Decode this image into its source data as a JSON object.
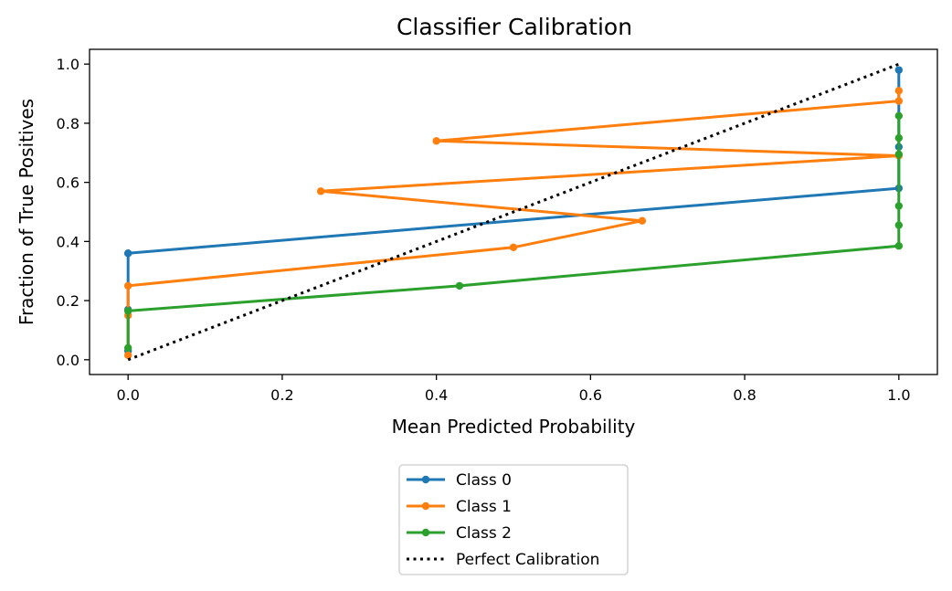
{
  "chart_data": {
    "type": "line",
    "title": "Classifier Calibration",
    "xlabel": "Mean Predicted Probability",
    "ylabel": "Fraction of True Positives",
    "xlim": [
      -0.05,
      1.05
    ],
    "ylim": [
      -0.05,
      1.05
    ],
    "xticks": [
      0.0,
      0.2,
      0.4,
      0.6,
      0.8,
      1.0
    ],
    "yticks": [
      0.0,
      0.2,
      0.4,
      0.6,
      0.8,
      1.0
    ],
    "xtick_labels": [
      "0.0",
      "0.2",
      "0.4",
      "0.6",
      "0.8",
      "1.0"
    ],
    "ytick_labels": [
      "0.0",
      "0.2",
      "0.4",
      "0.6",
      "0.8",
      "1.0"
    ],
    "grid": false,
    "legend_position": "below plot, centered",
    "series": [
      {
        "name": "Class 0",
        "color": "#1f77b4",
        "style": "solid-with-dots",
        "x": [
          0.0,
          0.0,
          0.0,
          0.0,
          1.0,
          1.0,
          1.0
        ],
        "y": [
          0.03,
          0.17,
          0.36,
          0.36,
          0.58,
          0.72,
          0.98
        ]
      },
      {
        "name": "Class 1",
        "color": "#ff7f0e",
        "style": "solid-with-dots",
        "x": [
          0.0,
          0.0,
          0.0,
          0.5,
          0.667,
          0.25,
          1.0,
          0.4,
          1.0,
          1.0
        ],
        "y": [
          0.015,
          0.15,
          0.25,
          0.38,
          0.47,
          0.57,
          0.69,
          0.74,
          0.875,
          0.91
        ]
      },
      {
        "name": "Class 2",
        "color": "#2ca02c",
        "style": "solid-with-dots",
        "x": [
          0.0,
          0.0,
          0.43,
          1.0,
          1.0,
          1.0,
          1.0,
          1.0,
          1.0
        ],
        "y": [
          0.04,
          0.165,
          0.25,
          0.385,
          0.455,
          0.52,
          0.695,
          0.75,
          0.825
        ]
      },
      {
        "name": "Perfect Calibration",
        "color": "#000000",
        "style": "dotted",
        "x": [
          0.0,
          1.0
        ],
        "y": [
          0.0,
          1.0
        ]
      }
    ]
  }
}
